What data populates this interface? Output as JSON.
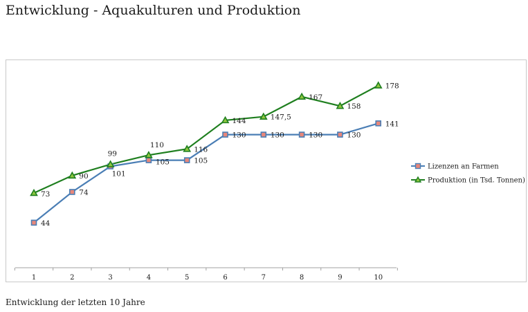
{
  "page": {
    "title": "Entwicklung - Aquakulturen und Produktion",
    "caption": "Entwicklung der letzten 10 Jahre"
  },
  "chart_data": {
    "type": "line",
    "title": "",
    "xlabel": "",
    "ylabel": "",
    "categories": [
      "1",
      "2",
      "3",
      "4",
      "5",
      "6",
      "7",
      "8",
      "9",
      "10"
    ],
    "ylim": [
      0,
      200
    ],
    "grid": false,
    "y_axis_visible": false,
    "legend_position": "right",
    "series": [
      {
        "name": "Lizenzen an Farmen",
        "values": [
          44,
          74,
          99,
          105,
          105,
          130,
          130,
          130,
          130,
          141
        ],
        "labels": [
          "44",
          "74",
          "99",
          "105",
          "105",
          "130",
          "130",
          "130",
          "130",
          "141"
        ],
        "color": "#4a7eb5",
        "marker": "square",
        "marker_fill": "#e8877a"
      },
      {
        "name": "Produktion (in Tsd. Tonnen)",
        "values": [
          73,
          90,
          101,
          110,
          116,
          144,
          147.5,
          167,
          158,
          178
        ],
        "labels": [
          "73",
          "90",
          "101",
          "110",
          "116",
          "144",
          "147,5",
          "167",
          "158",
          "178"
        ],
        "color": "#1f7f1f",
        "marker": "triangle",
        "marker_fill": "#8fc63f"
      }
    ]
  }
}
